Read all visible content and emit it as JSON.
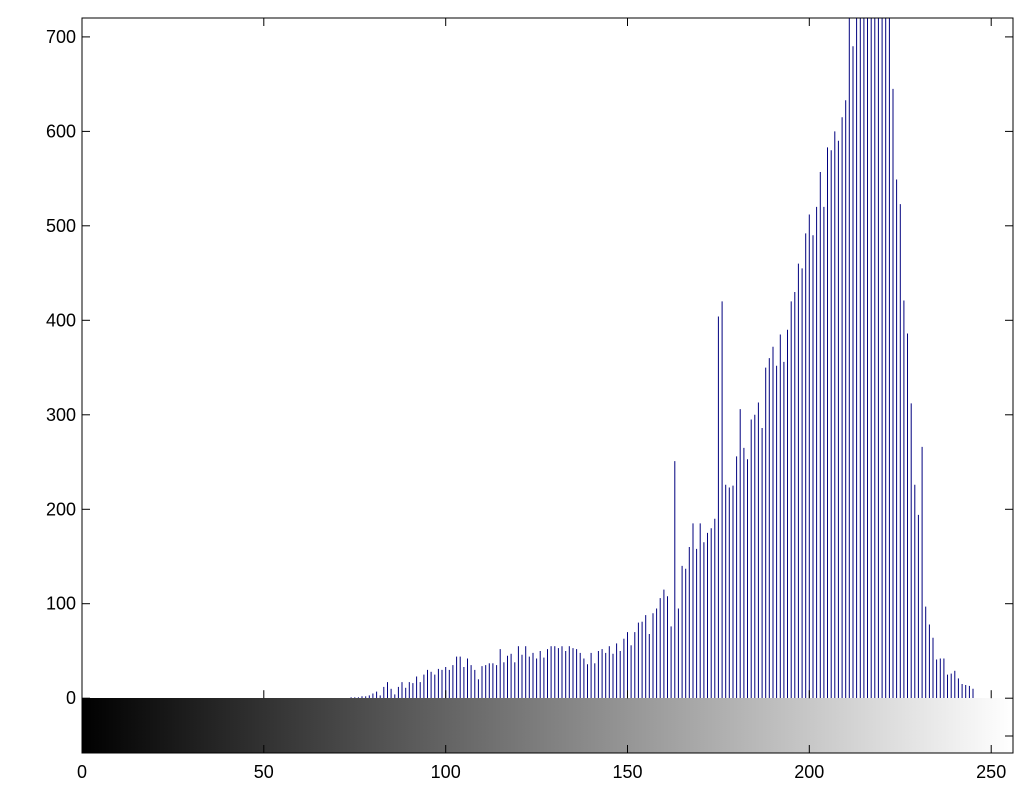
{
  "chart_data": {
    "type": "bar",
    "title": "",
    "xlabel": "",
    "ylabel": "",
    "xlim": [
      0,
      256
    ],
    "ylim": [
      -58,
      720
    ],
    "grid": false,
    "x_ticks": [
      0,
      50,
      100,
      150,
      200,
      250
    ],
    "y_ticks": [
      0,
      100,
      200,
      300,
      400,
      500,
      600,
      700
    ],
    "bar_color": "#00007f",
    "colorbar": {
      "type": "grayscale-gradient",
      "from": "#000000",
      "to": "#ffffff",
      "y_range": [
        -58,
        0
      ]
    },
    "bins": {
      "x_start": 74,
      "values": [
        1,
        1,
        1,
        2,
        2,
        3,
        5,
        7,
        3,
        12,
        17,
        10,
        4,
        12,
        17,
        11,
        17,
        16,
        23,
        17,
        25,
        30,
        28,
        25,
        31,
        30,
        33,
        30,
        35,
        44,
        44,
        33,
        42,
        35,
        30,
        20,
        34,
        35,
        37,
        37,
        35,
        52,
        38,
        45,
        47,
        38,
        55,
        46,
        55,
        44,
        48,
        42,
        50,
        43,
        52,
        55,
        55,
        53,
        55,
        50,
        55,
        53,
        52,
        48,
        42,
        36,
        48,
        37,
        50,
        52,
        48,
        55,
        47,
        58,
        50,
        63,
        70,
        56,
        70,
        80,
        81,
        88,
        68,
        90,
        95,
        106,
        115,
        108,
        76,
        251,
        95,
        140,
        137,
        160,
        185,
        158,
        185,
        165,
        175,
        180,
        190,
        404,
        420,
        226,
        223,
        225,
        256,
        306,
        265,
        253,
        295,
        300,
        313,
        286,
        350,
        360,
        372,
        352,
        385,
        356,
        390,
        420,
        430,
        460,
        455,
        492,
        512,
        490,
        520,
        557,
        520,
        583,
        580,
        600,
        590,
        615,
        633,
        720,
        690,
        720,
        720,
        720,
        720,
        720,
        720,
        720,
        720,
        720,
        720,
        645,
        549,
        523,
        421,
        386,
        312,
        226,
        194,
        266,
        97,
        78,
        64,
        41,
        42,
        42,
        25,
        26,
        29,
        21,
        15,
        14,
        13,
        10
      ]
    }
  }
}
